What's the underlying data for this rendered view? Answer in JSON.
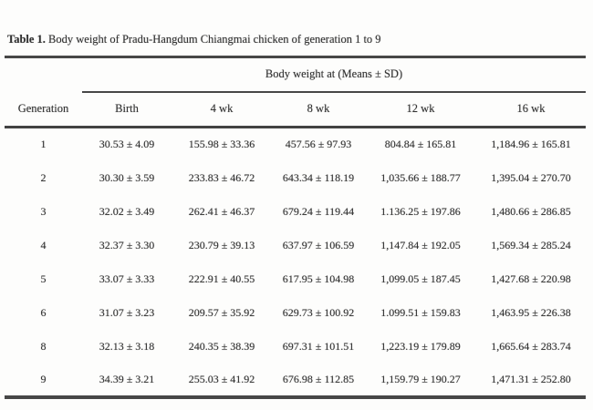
{
  "document": {
    "title_label": "Table 1.",
    "title_text": "Body weight of Pradu-Hangdum Chiangmai chicken of generation 1 to 9"
  },
  "chart_data": {
    "type": "table",
    "title": "Table 1. Body weight of Pradu-Hangdum Chiangmai chicken of generation 1 to 9",
    "spanning_header": "Body weight at (Means ± SD)",
    "columns": [
      "Generation",
      "Birth",
      "4 wk",
      "8 wk",
      "12 wk",
      "16 wk"
    ],
    "rows": [
      [
        "1",
        "30.53 ± 4.09",
        "155.98 ± 33.36",
        "457.56 ± 97.93",
        "804.84 ± 165.81",
        "1,184.96 ± 165.81"
      ],
      [
        "2",
        "30.30 ± 3.59",
        "233.83 ± 46.72",
        "643.34 ± 118.19",
        "1,035.66 ± 188.77",
        "1,395.04 ± 270.70"
      ],
      [
        "3",
        "32.02 ± 3.49",
        "262.41 ± 46.37",
        "679.24 ± 119.44",
        "1.136.25 ± 197.86",
        "1,480.66 ± 286.85"
      ],
      [
        "4",
        "32.37 ± 3.30",
        "230.79 ± 39.13",
        "637.97 ± 106.59",
        "1,147.84 ± 192.05",
        "1,569.34 ± 285.24"
      ],
      [
        "5",
        "33.07 ± 3.33",
        "222.91 ± 40.55",
        "617.95 ± 104.98",
        "1,099.05 ± 187.45",
        "1,427.68 ± 220.98"
      ],
      [
        "6",
        "31.07 ± 3.23",
        "209.57 ± 35.92",
        "629.73 ± 100.92",
        "1.099.51 ± 159.83",
        "1,463.95 ± 226.38"
      ],
      [
        "8",
        "32.13 ± 3.18",
        "240.35 ± 38.39",
        "697.31 ± 101.51",
        "1,223.19 ± 179.89",
        "1,665.64 ± 283.74"
      ],
      [
        "9",
        "34.39 ± 3.21",
        "255.03 ± 41.92",
        "676.98 ± 112.85",
        "1,159.79 ± 190.27",
        "1,471.31 ± 252.80"
      ]
    ]
  },
  "colors": {
    "text": "#333333",
    "rule": "#474747",
    "background": "#fdfdfc"
  }
}
